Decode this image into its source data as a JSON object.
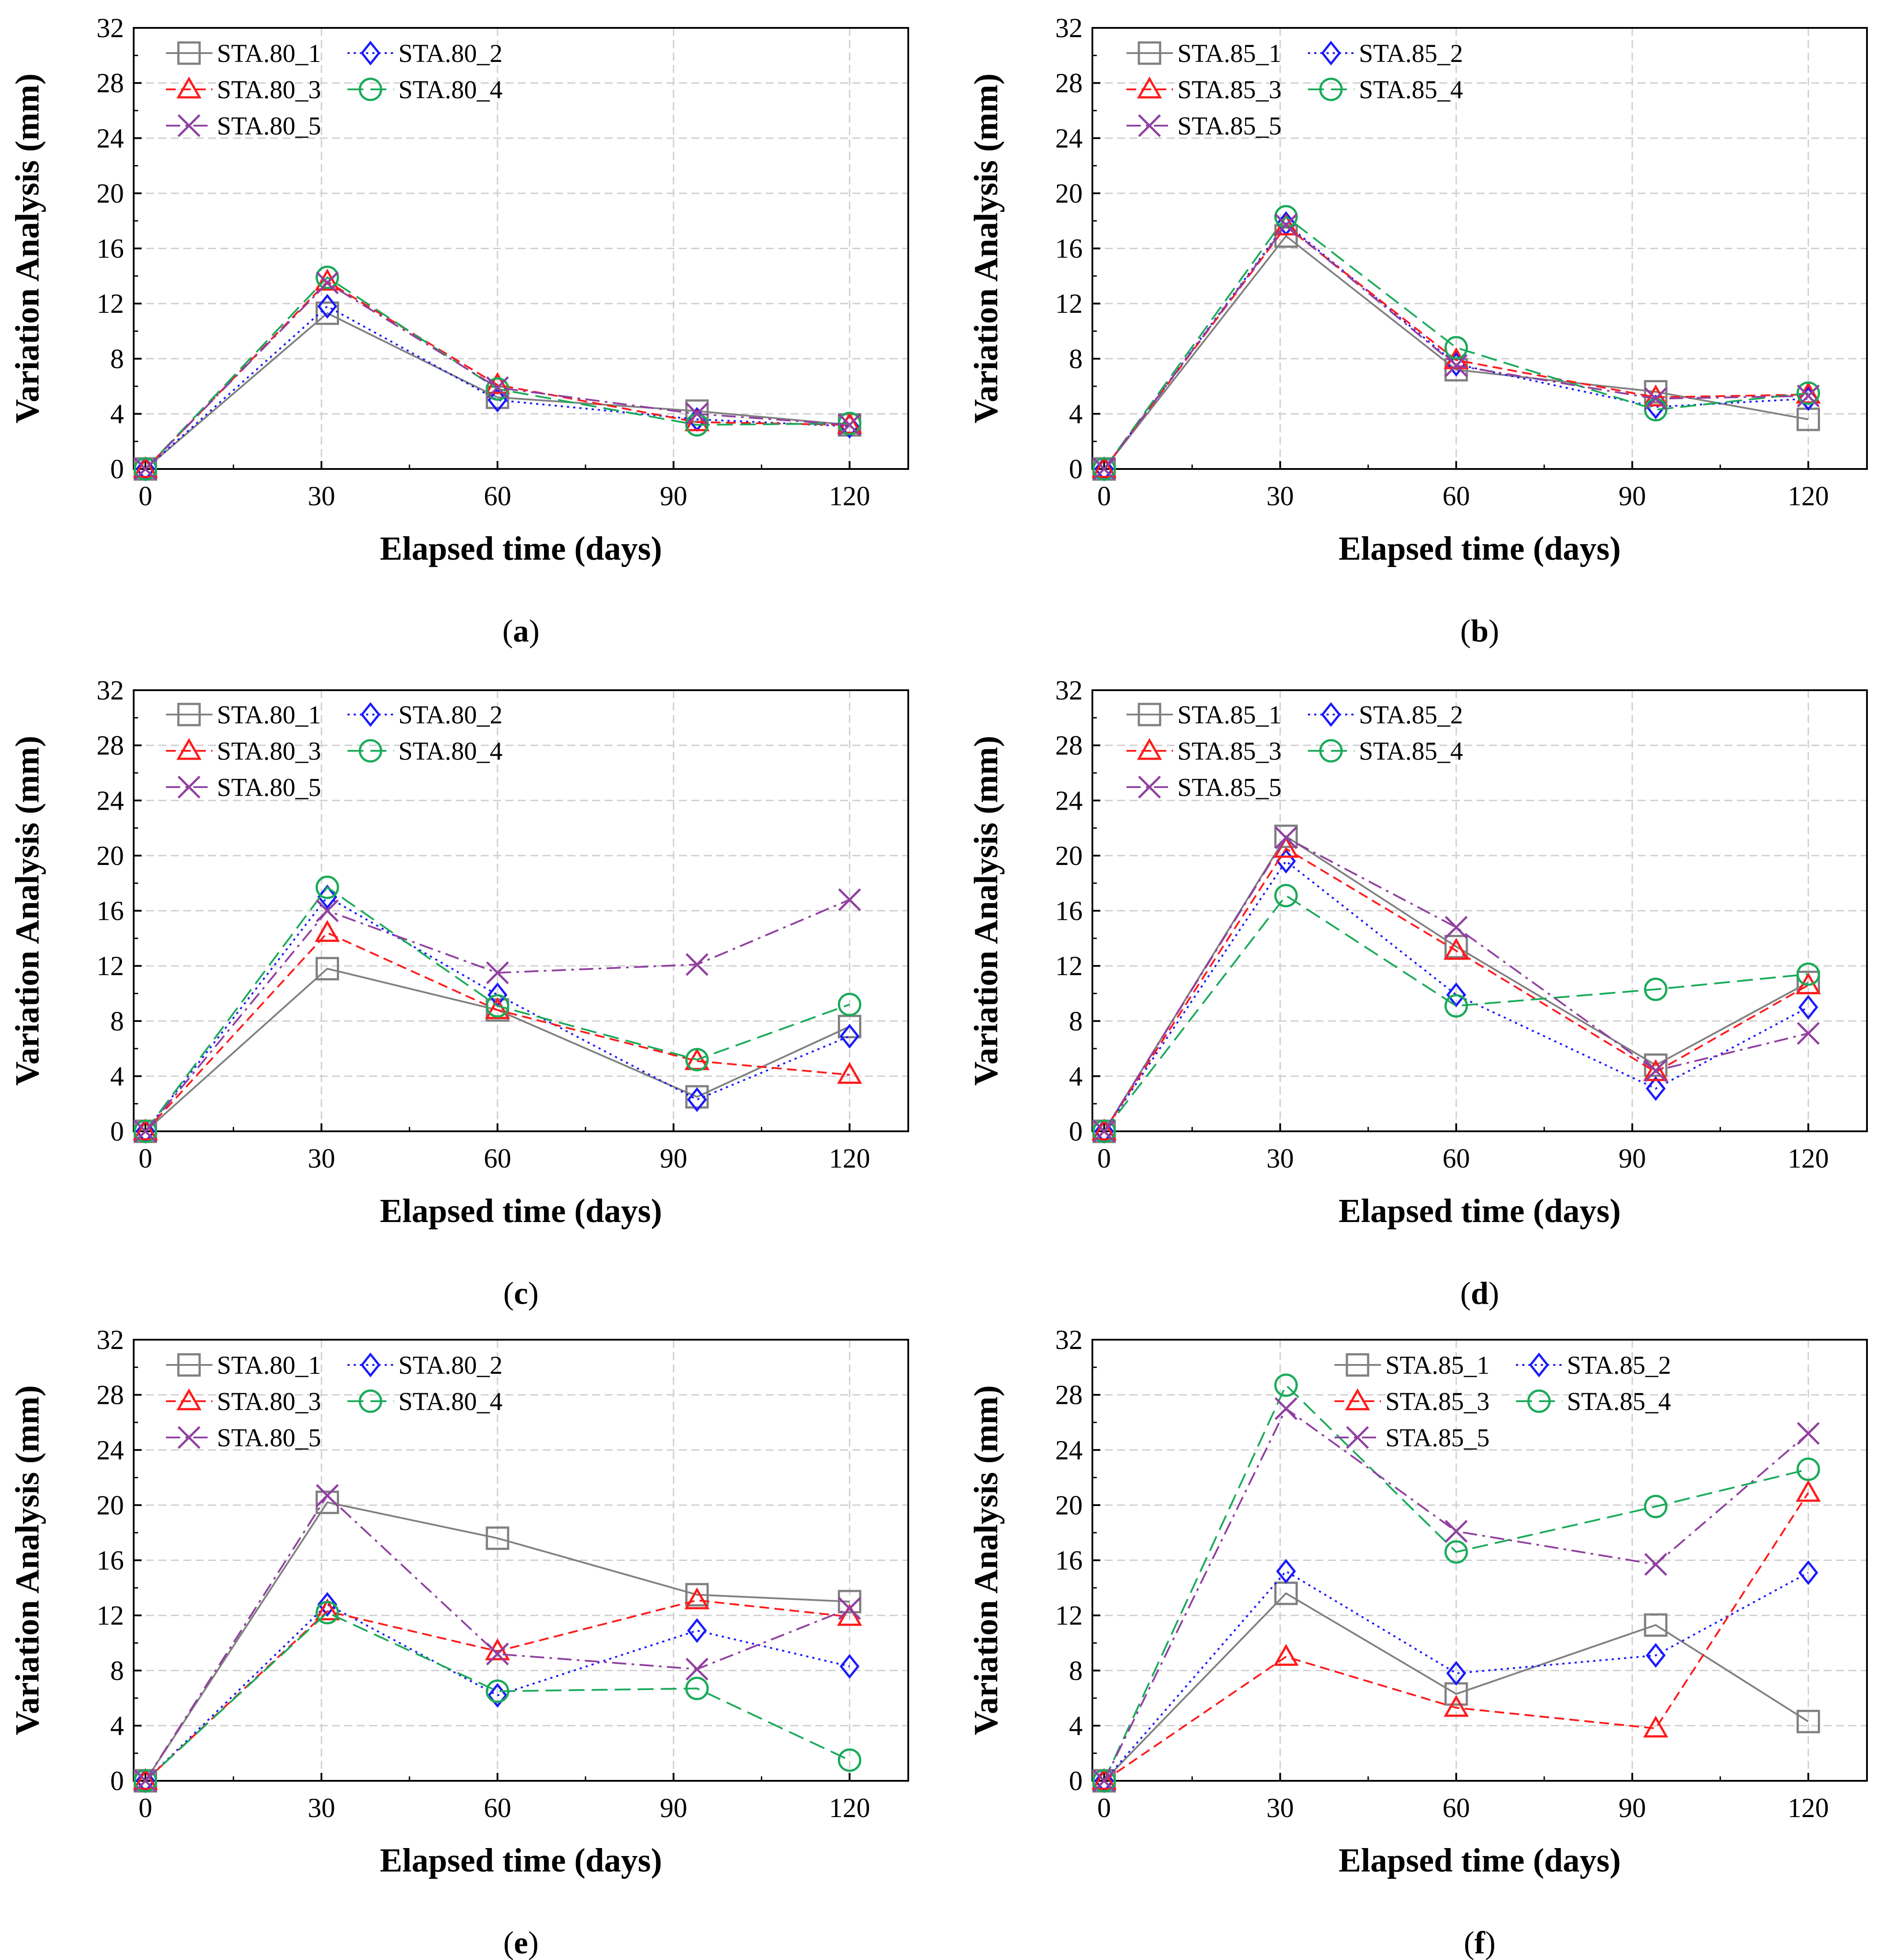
{
  "chart_data": [
    {
      "type": "line",
      "panel": "(a)",
      "caption_prefix": "(",
      "caption_letter": "a",
      "caption_suffix": ")",
      "xlabel": "Elapsed time (days)",
      "ylabel": "Variation Analysis (mm)",
      "xlim": [
        -2,
        130
      ],
      "ylim": [
        0,
        32
      ],
      "xticks": [
        0,
        30,
        60,
        90,
        120
      ],
      "yticks": [
        0,
        4,
        8,
        12,
        16,
        20,
        24,
        28,
        32
      ],
      "x": [
        0,
        31,
        60,
        94,
        120
      ],
      "legend_position": "top-left",
      "series": [
        {
          "name": "STA.80_1",
          "color": "#808080",
          "marker": "square",
          "dash": "solid",
          "values": [
            0,
            11.3,
            5.2,
            4.2,
            3.2
          ]
        },
        {
          "name": "STA.80_2",
          "color": "#1a1aff",
          "marker": "diamond",
          "dash": "dot",
          "values": [
            0,
            11.8,
            5.0,
            3.6,
            3.1
          ]
        },
        {
          "name": "STA.80_3",
          "color": "#ff1a1a",
          "marker": "triangle",
          "dash": "dash",
          "values": [
            0,
            13.6,
            6.1,
            3.4,
            3.2
          ]
        },
        {
          "name": "STA.80_4",
          "color": "#1aaa5a",
          "marker": "circle",
          "dash": "longdash",
          "values": [
            0,
            13.9,
            5.8,
            3.2,
            3.3
          ]
        },
        {
          "name": "STA.80_5",
          "color": "#9040a0",
          "marker": "x",
          "dash": "dashdot",
          "values": [
            0,
            13.5,
            5.9,
            4.0,
            3.2
          ]
        }
      ]
    },
    {
      "type": "line",
      "panel": "(b)",
      "caption_prefix": "(",
      "caption_letter": "b",
      "caption_suffix": ")",
      "xlabel": "Elapsed time (days)",
      "ylabel": "Variation Analysis (mm)",
      "xlim": [
        -2,
        130
      ],
      "ylim": [
        0,
        32
      ],
      "xticks": [
        0,
        30,
        60,
        90,
        120
      ],
      "yticks": [
        0,
        4,
        8,
        12,
        16,
        20,
        24,
        28,
        32
      ],
      "x": [
        0,
        31,
        60,
        94,
        120
      ],
      "legend_position": "top-left",
      "series": [
        {
          "name": "STA.85_1",
          "color": "#808080",
          "marker": "square",
          "dash": "solid",
          "values": [
            0,
            16.9,
            7.2,
            5.6,
            3.6
          ]
        },
        {
          "name": "STA.85_2",
          "color": "#1a1aff",
          "marker": "diamond",
          "dash": "dot",
          "values": [
            0,
            17.8,
            7.6,
            4.5,
            5.1
          ]
        },
        {
          "name": "STA.85_3",
          "color": "#ff1a1a",
          "marker": "triangle",
          "dash": "dash",
          "values": [
            0,
            17.6,
            7.9,
            5.2,
            5.4
          ]
        },
        {
          "name": "STA.85_4",
          "color": "#1aaa5a",
          "marker": "circle",
          "dash": "longdash",
          "values": [
            0,
            18.3,
            8.8,
            4.3,
            5.5
          ]
        },
        {
          "name": "STA.85_5",
          "color": "#9040a0",
          "marker": "x",
          "dash": "dashdot",
          "values": [
            0,
            17.7,
            7.5,
            5.1,
            5.3
          ]
        }
      ]
    },
    {
      "type": "line",
      "panel": "(c)",
      "caption_prefix": "(",
      "caption_letter": "c",
      "caption_suffix": ")",
      "xlabel": "Elapsed time (days)",
      "ylabel": "Variation Analysis (mm)",
      "xlim": [
        -2,
        130
      ],
      "ylim": [
        0,
        32
      ],
      "xticks": [
        0,
        30,
        60,
        90,
        120
      ],
      "yticks": [
        0,
        4,
        8,
        12,
        16,
        20,
        24,
        28,
        32
      ],
      "x": [
        0,
        31,
        60,
        94,
        120
      ],
      "legend_position": "top-left",
      "series": [
        {
          "name": "STA.80_1",
          "color": "#808080",
          "marker": "square",
          "dash": "solid",
          "values": [
            0,
            11.8,
            8.8,
            2.5,
            7.6
          ]
        },
        {
          "name": "STA.80_2",
          "color": "#1a1aff",
          "marker": "diamond",
          "dash": "dot",
          "values": [
            0,
            17.0,
            9.9,
            2.3,
            6.9
          ]
        },
        {
          "name": "STA.80_3",
          "color": "#ff1a1a",
          "marker": "triangle",
          "dash": "dash",
          "values": [
            0,
            14.4,
            8.8,
            5.1,
            4.1
          ]
        },
        {
          "name": "STA.80_4",
          "color": "#1aaa5a",
          "marker": "circle",
          "dash": "longdash",
          "values": [
            0,
            17.7,
            9.1,
            5.2,
            9.2
          ]
        },
        {
          "name": "STA.80_5",
          "color": "#9040a0",
          "marker": "x",
          "dash": "dashdot",
          "values": [
            0,
            16.0,
            11.5,
            12.1,
            16.8
          ]
        }
      ]
    },
    {
      "type": "line",
      "panel": "(d)",
      "caption_prefix": "(",
      "caption_letter": "d",
      "caption_suffix": ")",
      "xlabel": "Elapsed time (days)",
      "ylabel": "Variation Analysis (mm)",
      "xlim": [
        -2,
        130
      ],
      "ylim": [
        0,
        32
      ],
      "xticks": [
        0,
        30,
        60,
        90,
        120
      ],
      "yticks": [
        0,
        4,
        8,
        12,
        16,
        20,
        24,
        28,
        32
      ],
      "x": [
        0,
        31,
        60,
        94,
        120
      ],
      "legend_position": "top-left",
      "series": [
        {
          "name": "STA.85_1",
          "color": "#808080",
          "marker": "square",
          "dash": "solid",
          "values": [
            0,
            21.4,
            13.4,
            4.8,
            10.8
          ]
        },
        {
          "name": "STA.85_2",
          "color": "#1a1aff",
          "marker": "diamond",
          "dash": "dot",
          "values": [
            0,
            19.6,
            9.9,
            3.1,
            9.0
          ]
        },
        {
          "name": "STA.85_3",
          "color": "#ff1a1a",
          "marker": "triangle",
          "dash": "dash",
          "values": [
            0,
            20.5,
            13.1,
            4.3,
            10.6
          ]
        },
        {
          "name": "STA.85_4",
          "color": "#1aaa5a",
          "marker": "circle",
          "dash": "longdash",
          "values": [
            0,
            17.1,
            9.1,
            10.3,
            11.4
          ]
        },
        {
          "name": "STA.85_5",
          "color": "#9040a0",
          "marker": "x",
          "dash": "dashdot",
          "values": [
            0,
            21.3,
            14.8,
            4.4,
            7.1
          ]
        }
      ]
    },
    {
      "type": "line",
      "panel": "(e)",
      "caption_prefix": "(",
      "caption_letter": "e",
      "caption_suffix": ")",
      "xlabel": "Elapsed time (days)",
      "ylabel": "Variation Analysis (mm)",
      "xlim": [
        -2,
        130
      ],
      "ylim": [
        0,
        32
      ],
      "xticks": [
        0,
        30,
        60,
        90,
        120
      ],
      "yticks": [
        0,
        4,
        8,
        12,
        16,
        20,
        24,
        28,
        32
      ],
      "x": [
        0,
        31,
        60,
        94,
        120
      ],
      "legend_position": "top-left",
      "series": [
        {
          "name": "STA.80_1",
          "color": "#808080",
          "marker": "square",
          "dash": "solid",
          "values": [
            0,
            20.2,
            17.6,
            13.5,
            13.0
          ]
        },
        {
          "name": "STA.80_2",
          "color": "#1a1aff",
          "marker": "diamond",
          "dash": "dot",
          "values": [
            0,
            12.8,
            6.2,
            10.9,
            8.3
          ]
        },
        {
          "name": "STA.80_3",
          "color": "#ff1a1a",
          "marker": "triangle",
          "dash": "dash",
          "values": [
            0,
            12.3,
            9.4,
            13.1,
            11.9
          ]
        },
        {
          "name": "STA.80_4",
          "color": "#1aaa5a",
          "marker": "circle",
          "dash": "longdash",
          "values": [
            0,
            12.2,
            6.5,
            6.7,
            1.5
          ]
        },
        {
          "name": "STA.80_5",
          "color": "#9040a0",
          "marker": "x",
          "dash": "dashdot",
          "values": [
            0,
            20.7,
            9.2,
            8.1,
            12.5
          ]
        }
      ]
    },
    {
      "type": "line",
      "panel": "(f)",
      "caption_prefix": "(",
      "caption_letter": "f",
      "caption_suffix": ")",
      "xlabel": "Elapsed time (days)",
      "ylabel": "Variation Analysis (mm)",
      "xlim": [
        -2,
        130
      ],
      "ylim": [
        0,
        32
      ],
      "xticks": [
        0,
        30,
        60,
        90,
        120
      ],
      "yticks": [
        0,
        4,
        8,
        12,
        16,
        20,
        24,
        28,
        32
      ],
      "x": [
        0,
        31,
        60,
        94,
        120
      ],
      "legend_position": "top-center",
      "series": [
        {
          "name": "STA.85_1",
          "color": "#808080",
          "marker": "square",
          "dash": "solid",
          "values": [
            0,
            13.6,
            6.3,
            11.3,
            4.3
          ]
        },
        {
          "name": "STA.85_2",
          "color": "#1a1aff",
          "marker": "diamond",
          "dash": "dot",
          "values": [
            0,
            15.2,
            7.8,
            9.1,
            15.1
          ]
        },
        {
          "name": "STA.85_3",
          "color": "#ff1a1a",
          "marker": "triangle",
          "dash": "dash",
          "values": [
            0,
            9.0,
            5.3,
            3.8,
            20.9
          ]
        },
        {
          "name": "STA.85_4",
          "color": "#1aaa5a",
          "marker": "circle",
          "dash": "longdash",
          "values": [
            0,
            28.7,
            16.6,
            19.9,
            22.6
          ]
        },
        {
          "name": "STA.85_5",
          "color": "#9040a0",
          "marker": "x",
          "dash": "dashdot",
          "values": [
            0,
            27.0,
            18.1,
            15.7,
            25.2
          ]
        }
      ]
    }
  ]
}
